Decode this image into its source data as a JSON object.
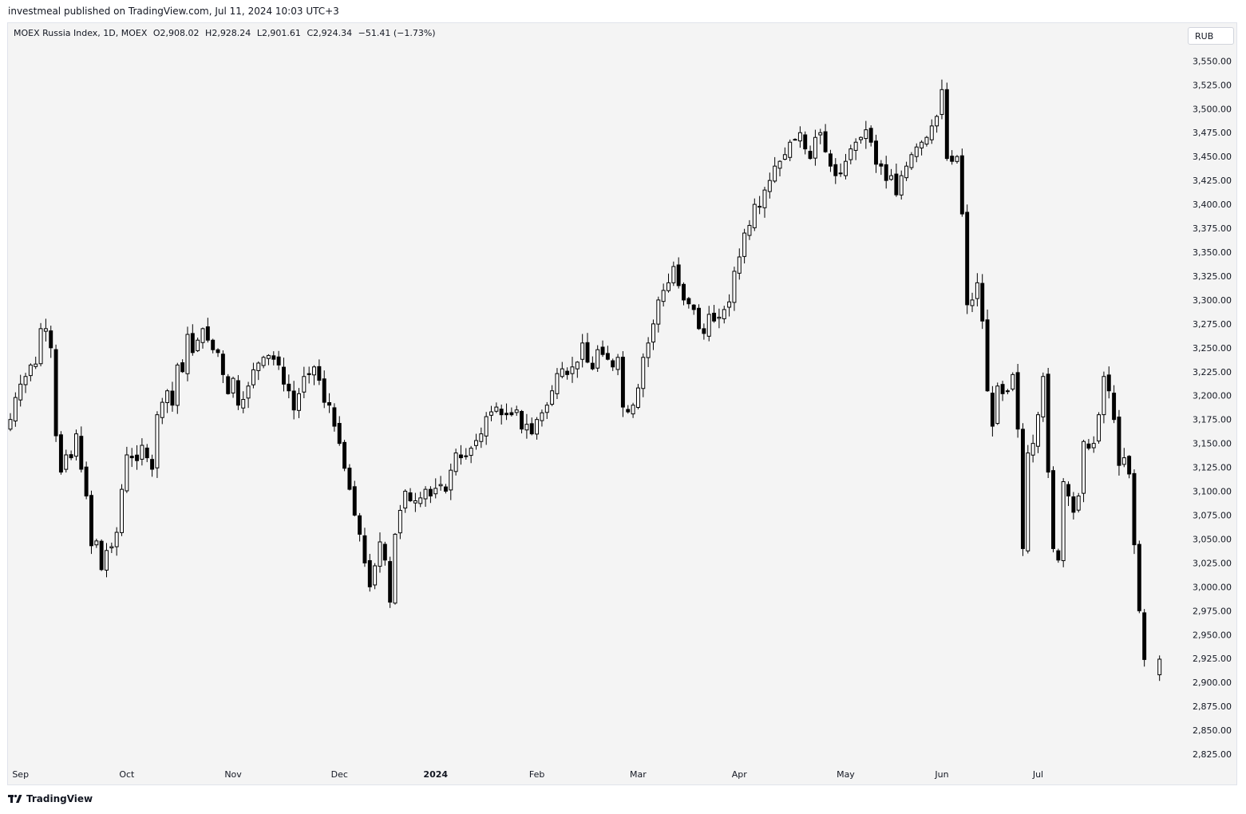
{
  "header": {
    "published_line": "investmeal published on TradingView.com, Jul 11, 2024 10:03 UTC+3"
  },
  "legend": {
    "symbol": "MOEX Russia Index, 1D, MOEX",
    "open": "O2,908.02",
    "high": "H2,928.24",
    "low": "L2,901.61",
    "close": "C2,924.34",
    "change": "−51.41 (−1.73%)"
  },
  "currency_button": "RUB",
  "footer": {
    "brand": "TradingView"
  },
  "colors": {
    "background": "#f4f4f4",
    "candle_up_body": "#ffffff",
    "candle_down_body": "#000000",
    "wick": "#000000"
  },
  "chart_data": {
    "type": "candlestick",
    "symbol": "MOEX Russia Index",
    "interval": "1D",
    "ylim": [
      2815,
      3562
    ],
    "y_ticks": [
      "3,550.00",
      "3,525.00",
      "3,500.00",
      "3,475.00",
      "3,450.00",
      "3,425.00",
      "3,400.00",
      "3,375.00",
      "3,350.00",
      "3,325.00",
      "3,300.00",
      "3,275.00",
      "3,250.00",
      "3,225.00",
      "3,200.00",
      "3,175.00",
      "3,150.00",
      "3,125.00",
      "3,100.00",
      "3,075.00",
      "3,050.00",
      "3,025.00",
      "3,000.00",
      "2,975.00",
      "2,950.00",
      "2,925.00",
      "2,900.00",
      "2,875.00",
      "2,850.00",
      "2,825.00"
    ],
    "x_ticks": [
      {
        "label": "Sep",
        "index": 2
      },
      {
        "label": "Oct",
        "index": 23
      },
      {
        "label": "Nov",
        "index": 44
      },
      {
        "label": "Dec",
        "index": 65
      },
      {
        "label": "2024",
        "index": 84,
        "bold": true
      },
      {
        "label": "Feb",
        "index": 104
      },
      {
        "label": "Mar",
        "index": 124
      },
      {
        "label": "Apr",
        "index": 144
      },
      {
        "label": "May",
        "index": 165
      },
      {
        "label": "Jun",
        "index": 184
      },
      {
        "label": "Jul",
        "index": 203
      }
    ],
    "closes": [
      3175,
      3198,
      3212,
      3220,
      3232,
      3233,
      3270,
      3270,
      3250,
      3158,
      3120,
      3138,
      3135,
      3160,
      3123,
      3095,
      3043,
      3048,
      3018,
      3038,
      3042,
      3057,
      3102,
      3138,
      3135,
      3132,
      3148,
      3135,
      3123,
      3180,
      3193,
      3205,
      3190,
      3232,
      3225,
      3264,
      3245,
      3258,
      3270,
      3258,
      3248,
      3245,
      3222,
      3202,
      3218,
      3190,
      3196,
      3210,
      3227,
      3234,
      3240,
      3242,
      3238,
      3232,
      3212,
      3205,
      3185,
      3202,
      3220,
      3222,
      3230,
      3216,
      3193,
      3190,
      3168,
      3150,
      3124,
      3102,
      3075,
      3055,
      3025,
      3000,
      3022,
      3047,
      3028,
      2984,
      3055,
      3080,
      3100,
      3090,
      3090,
      3093,
      3102,
      3095,
      3103,
      3107,
      3100,
      3122,
      3140,
      3135,
      3137,
      3145,
      3153,
      3160,
      3178,
      3183,
      3188,
      3180,
      3180,
      3180,
      3185,
      3165,
      3170,
      3160,
      3175,
      3182,
      3190,
      3205,
      3223,
      3228,
      3222,
      3230,
      3235,
      3255,
      3235,
      3228,
      3248,
      3243,
      3238,
      3230,
      3240,
      3188,
      3183,
      3190,
      3208,
      3240,
      3255,
      3275,
      3300,
      3310,
      3318,
      3335,
      3315,
      3300,
      3296,
      3290,
      3270,
      3265,
      3285,
      3278,
      3282,
      3290,
      3298,
      3330,
      3345,
      3370,
      3378,
      3400,
      3398,
      3415,
      3425,
      3440,
      3445,
      3452,
      3465,
      3468,
      3475,
      3458,
      3448,
      3470,
      3475,
      3455,
      3440,
      3430,
      3432,
      3445,
      3458,
      3465,
      3470,
      3478,
      3465,
      3442,
      3440,
      3425,
      3430,
      3410,
      3430,
      3440,
      3452,
      3460,
      3465,
      3470,
      3482,
      3492,
      3520,
      3448,
      3445,
      3450,
      3390,
      3295,
      3300,
      3318,
      3278,
      3205,
      3168,
      3210,
      3202,
      3205,
      3222,
      3165,
      3040,
      3140,
      3150,
      3180,
      3220,
      3120,
      3040,
      3028,
      3110,
      3095,
      3078,
      3095,
      3152,
      3145,
      3150,
      3180,
      3220,
      3205,
      3175,
      3127,
      3135,
      3118,
      3044,
      2975,
      2924
    ],
    "last_bar": {
      "open": 2908.02,
      "high": 2928.24,
      "low": 2901.61,
      "close": 2924.34
    }
  }
}
